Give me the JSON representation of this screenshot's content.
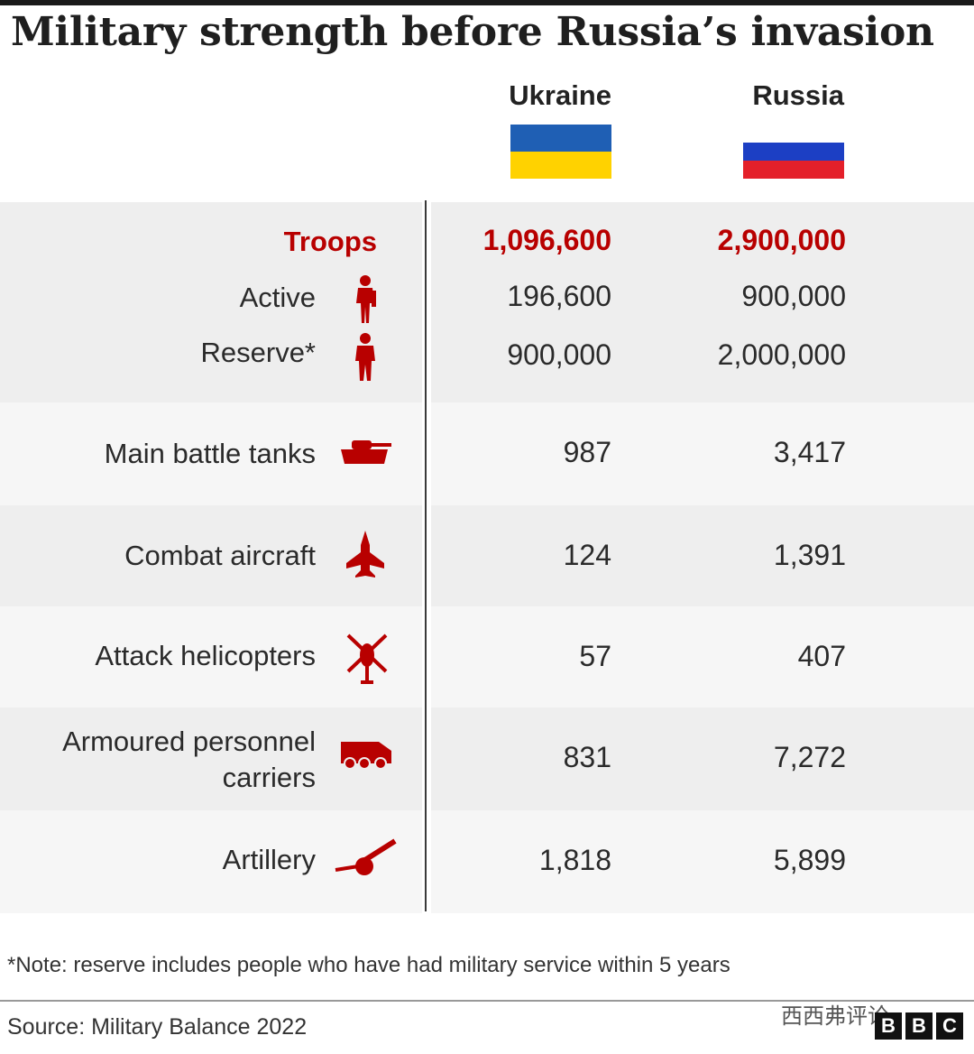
{
  "title": "Military strength before Russia’s invasion",
  "columns": {
    "ukraine": "Ukraine",
    "russia": "Russia"
  },
  "flags": {
    "ukraine": [
      "#1f5fb4",
      "#ffd200"
    ],
    "russia": [
      "#ffffff",
      "#1c3fc4",
      "#e4202a"
    ]
  },
  "accent_color": "#b80000",
  "chart_data": {
    "type": "table",
    "title": "Military strength before Russia’s invasion",
    "columns": [
      "Ukraine",
      "Russia"
    ],
    "rows": [
      {
        "label": "Troops",
        "ukraine": "1,096,600",
        "russia": "2,900,000",
        "icon": "soldiers-icon"
      },
      {
        "label": "Active",
        "ukraine": "196,600",
        "russia": "900,000",
        "icon": "active-soldier-icon"
      },
      {
        "label": "Reserve*",
        "ukraine": "900,000",
        "russia": "2,000,000",
        "icon": "reserve-soldier-icon"
      },
      {
        "label": "Main battle tanks",
        "ukraine": "987",
        "russia": "3,417",
        "icon": "tank-icon"
      },
      {
        "label": "Combat aircraft",
        "ukraine": "124",
        "russia": "1,391",
        "icon": "aircraft-icon"
      },
      {
        "label": "Attack helicopters",
        "ukraine": "57",
        "russia": "407",
        "icon": "helicopter-icon"
      },
      {
        "label_lines": [
          "Armoured personnel",
          "carriers"
        ],
        "ukraine": "831",
        "russia": "7,272",
        "icon": "armoured-carrier-icon"
      },
      {
        "label": "Artillery",
        "ukraine": "1,818",
        "russia": "5,899",
        "icon": "artillery-icon"
      }
    ]
  },
  "note": "*Note: reserve includes people who have had military service within 5 years",
  "source": "Source: Military Balance 2022",
  "watermark": "西西弗评论",
  "logo": [
    "B",
    "B",
    "C"
  ]
}
